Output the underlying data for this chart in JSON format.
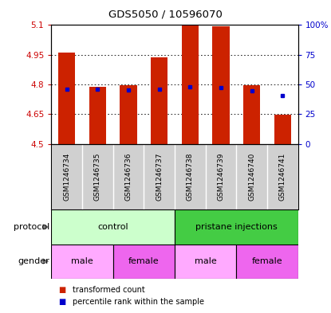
{
  "title": "GDS5050 / 10596070",
  "samples": [
    "GSM1246734",
    "GSM1246735",
    "GSM1246736",
    "GSM1246737",
    "GSM1246738",
    "GSM1246739",
    "GSM1246740",
    "GSM1246741"
  ],
  "bar_values": [
    4.963,
    4.787,
    4.797,
    4.937,
    5.097,
    5.093,
    4.797,
    4.648
  ],
  "bar_base": 4.5,
  "blue_dot_values": [
    4.778,
    4.775,
    4.772,
    4.775,
    4.787,
    4.784,
    4.769,
    4.745
  ],
  "ylim": [
    4.5,
    5.1
  ],
  "yticks_left": [
    4.5,
    4.65,
    4.8,
    4.95,
    5.1
  ],
  "yticks_right": [
    0,
    25,
    50,
    75,
    100
  ],
  "yticks_right_labels": [
    "0",
    "25",
    "50",
    "75",
    "100%"
  ],
  "left_axis_color": "#cc0000",
  "right_axis_color": "#0000cc",
  "bar_color": "#cc2200",
  "blue_dot_color": "#0000cc",
  "bg_color": "#ffffff",
  "protocol_groups": [
    {
      "label": "control",
      "start": 0,
      "end": 4,
      "color": "#ccffcc"
    },
    {
      "label": "pristane injections",
      "start": 4,
      "end": 8,
      "color": "#44cc44"
    }
  ],
  "gender_groups": [
    {
      "label": "male",
      "start": 0,
      "end": 2,
      "color": "#ffaaff"
    },
    {
      "label": "female",
      "start": 2,
      "end": 4,
      "color": "#ee66ee"
    },
    {
      "label": "male",
      "start": 4,
      "end": 6,
      "color": "#ffaaff"
    },
    {
      "label": "female",
      "start": 6,
      "end": 8,
      "color": "#ee66ee"
    }
  ],
  "legend_items": [
    {
      "label": "transformed count",
      "color": "#cc2200"
    },
    {
      "label": "percentile rank within the sample",
      "color": "#0000cc"
    }
  ],
  "bar_width": 0.55,
  "sample_area_color": "#d0d0d0",
  "sample_divider_color": "#aaaaaa"
}
